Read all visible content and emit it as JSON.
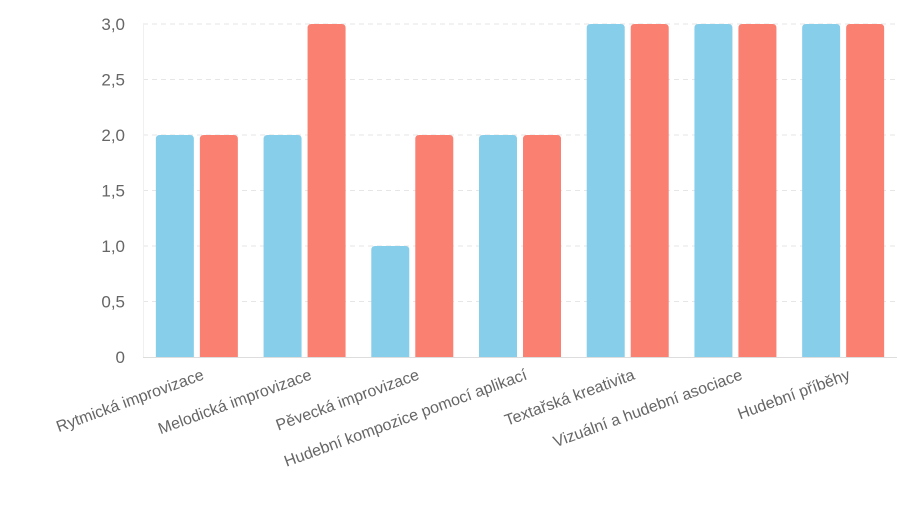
{
  "chart_data": {
    "type": "bar",
    "title": "",
    "xlabel": "",
    "ylabel": "",
    "categories": [
      "Rytmická improvizace",
      "Melodická improvizace",
      "Pěvecká improvizace",
      "Hudební kompozice pomocí aplikací",
      "Textařská kreativita",
      "Vizuální a hudební asociace",
      "Hudební příběhy"
    ],
    "series": [
      {
        "color": "#87CEEB",
        "values": [
          2,
          2,
          1,
          2,
          3,
          3,
          3
        ]
      },
      {
        "color": "#FA8072",
        "values": [
          2,
          3,
          2,
          2,
          3,
          3,
          3
        ]
      }
    ],
    "ylim": [
      0,
      3
    ],
    "yticks": [
      0,
      0.5,
      1,
      1.5,
      2,
      2.5,
      3
    ],
    "ytick_labels": [
      "0",
      "0,5",
      "1,0",
      "1,5",
      "2,0",
      "2,5",
      "3,0"
    ],
    "grid": true,
    "grid_style": "dashed",
    "legend": "none",
    "colors": {
      "grid": "#e6e6e6",
      "axis": "#dddddd",
      "tick_text": "#666666"
    }
  }
}
